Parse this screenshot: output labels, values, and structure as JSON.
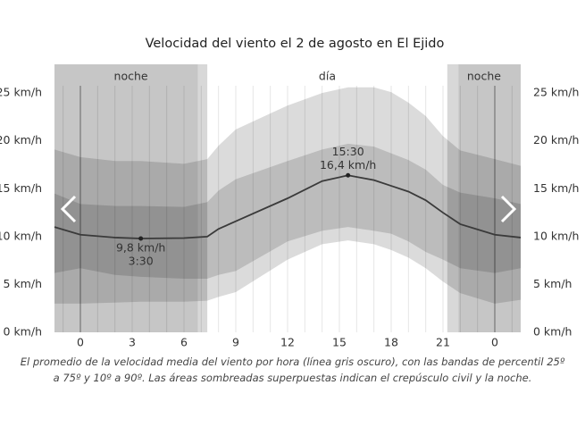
{
  "chart_data": {
    "type": "line",
    "title": "Velocidad del viento el 2 de agosto en El Ejido",
    "caption": "El promedio de la velocidad media del viento por hora (línea gris oscuro), con las bandas de percentil 25º a 75º y 10º a 90º. Las áreas sombreadas superpuestas indican el crepúsculo civil y la noche.",
    "x": [
      -1.5,
      0,
      2,
      3.5,
      6,
      7.35,
      8,
      9,
      12,
      14,
      15.5,
      17,
      18,
      19,
      20,
      21,
      22,
      24,
      25.5
    ],
    "line": {
      "color": "#3a3a3a",
      "values": [
        11,
        10.2,
        9.9,
        9.8,
        9.85,
        10,
        10.8,
        11.6,
        14,
        15.8,
        16.4,
        15.9,
        15.3,
        14.7,
        13.8,
        12.5,
        11.3,
        10.2,
        9.9
      ]
    },
    "bands": [
      {
        "color": "rgba(0,0,0,0.14)",
        "upper": [
          19.1,
          18.3,
          17.9,
          17.9,
          17.6,
          18.1,
          19.5,
          21.2,
          23.7,
          25,
          25.6,
          25.6,
          25.1,
          24,
          22.6,
          20.5,
          19,
          18.1,
          17.4
        ],
        "lower": [
          3,
          3,
          3.1,
          3.2,
          3.2,
          3.3,
          3.7,
          4.2,
          7.6,
          9.2,
          9.6,
          9.2,
          8.6,
          7.8,
          6.7,
          5.3,
          4.1,
          3,
          3.4
        ]
      },
      {
        "color": "rgba(0,0,0,0.14)",
        "upper": [
          14.5,
          13.4,
          13.2,
          13.2,
          13.1,
          13.6,
          14.8,
          16,
          17.9,
          19.1,
          19.7,
          19.4,
          18.7,
          18,
          17,
          15.4,
          14.6,
          14,
          13.4
        ],
        "lower": [
          6.2,
          6.7,
          6,
          5.8,
          5.6,
          5.6,
          6,
          6.4,
          9.5,
          10.6,
          11,
          10.6,
          10.3,
          9.5,
          8.4,
          7.6,
          6.7,
          6.2,
          6.7
        ]
      }
    ],
    "xlim": [
      -1.5,
      25.5
    ],
    "xticks": [
      0,
      3,
      6,
      9,
      12,
      15,
      18,
      21,
      {
        "value": 24,
        "label": "0"
      }
    ],
    "xminorticks": [
      -1,
      0,
      1,
      2,
      3,
      4,
      5,
      6,
      7,
      8,
      9,
      10,
      11,
      12,
      13,
      14,
      15,
      16,
      17,
      18,
      19,
      20,
      21,
      22,
      23,
      24,
      25
    ],
    "day_boundaries": [
      0,
      24
    ],
    "ylim": [
      0,
      28
    ],
    "yticks": [
      {
        "value": 0,
        "label": "0 km/h"
      },
      {
        "value": 5,
        "label": "5 km/h"
      },
      {
        "value": 10,
        "label": "10 km/h"
      },
      {
        "value": 15,
        "label": "15 km/h"
      },
      {
        "value": 20,
        "label": "20 km/h"
      },
      {
        "value": 25,
        "label": "25 km/h"
      }
    ],
    "night_color": "#c6c6c6",
    "twilight_color": "#d8d8d8",
    "regions": [
      {
        "name": "noche",
        "start": -1.5,
        "end": 7.35,
        "night_end": 6.8
      },
      {
        "name": "día",
        "start": 7.35,
        "end": 21.25
      },
      {
        "name": "noche",
        "start": 21.25,
        "end": 25.5,
        "night_start": 21.9
      }
    ],
    "annotations": [
      {
        "time": "15:30",
        "value_label": "16,4 km/h",
        "x": 15.5,
        "y": 16.4,
        "position": "above"
      },
      {
        "time": "3:30",
        "value_label": "9,8 km/h",
        "x": 3.5,
        "y": 9.8,
        "position": "below"
      }
    ]
  }
}
